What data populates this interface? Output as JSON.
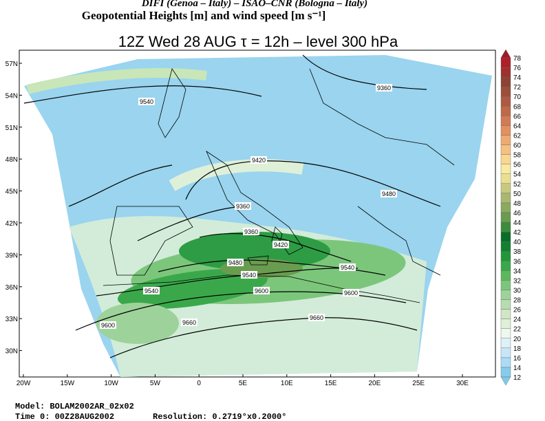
{
  "header": {
    "institutions": "DIFI (Genoa – Italy)  –  ISAO–CNR (Bologna – Italy)",
    "product": "Geopotential Heights [m] and wind speed [m s⁻¹]",
    "title": "12Z Wed 28 AUG  τ = 12h  –  level 300 hPa"
  },
  "map": {
    "lat_labels": [
      "57N",
      "54N",
      "51N",
      "48N",
      "45N",
      "42N",
      "39N",
      "36N",
      "33N",
      "30N"
    ],
    "lon_labels": [
      "20W",
      "15W",
      "10W",
      "5W",
      "0",
      "5E",
      "10E",
      "15E",
      "20E",
      "25E",
      "30E"
    ],
    "contour_labels": [
      "9540",
      "9360",
      "9420",
      "9480",
      "9360",
      "9360",
      "9420",
      "9480",
      "9540",
      "9540",
      "9540",
      "9600",
      "9600",
      "9600",
      "9660",
      "9660"
    ]
  },
  "colorbar": {
    "labels": [
      "12",
      "14",
      "16",
      "18",
      "20",
      "22",
      "24",
      "26",
      "28",
      "30",
      "32",
      "34",
      "36",
      "38",
      "40",
      "42",
      "44",
      "46",
      "48",
      "50",
      "52",
      "54",
      "56",
      "58",
      "60",
      "62",
      "64",
      "66",
      "68",
      "70",
      "72",
      "74",
      "76",
      "78"
    ],
    "colors": [
      "#87cdea",
      "#aadcf5",
      "#c8e6f8",
      "#def0fa",
      "#eef8ee",
      "#dff0d8",
      "#d0e6c6",
      "#b7dcb0",
      "#9dd39a",
      "#7cc67c",
      "#5cb85c",
      "#3aa84a",
      "#22963a",
      "#118030",
      "#0a6e28",
      "#3c8c3c",
      "#6a9c50",
      "#8aaa60",
      "#a8b870",
      "#c8c880",
      "#e8e090",
      "#f8eaa0",
      "#f8d890",
      "#f5c080",
      "#eeaa70",
      "#e29060",
      "#d27a55",
      "#c0684a",
      "#ae5a42",
      "#9c4e3a",
      "#8c4234",
      "#a0302e",
      "#b01e2a"
    ],
    "low_color": "#7fcbe8",
    "high_color": "#a01828"
  },
  "footer": {
    "model": "Model: BOLAM2002AR_02x02",
    "time": "Time 0: 00Z28AUG2002",
    "resolution": "Resolution: 0.2719°x0.2000°"
  }
}
